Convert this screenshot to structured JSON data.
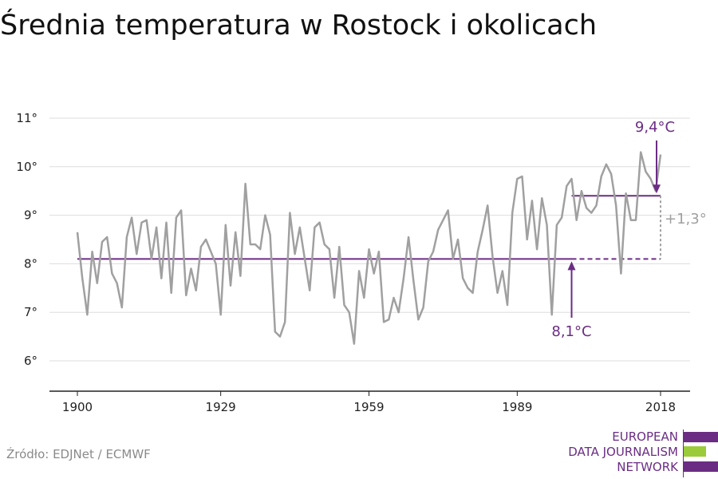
{
  "title": "Średnia temperatura w Rostock i okolicach",
  "source": "Źródło: EDJNet / ECMWF",
  "logo": {
    "lines": [
      "EUROPEAN",
      "DATA JOURNALISM",
      "NETWORK"
    ],
    "colors": {
      "purple": "#6b2d84",
      "green": "#9bcb3b"
    }
  },
  "colors": {
    "line": "#a0a0a0",
    "accent": "#6b2d84",
    "delta": "#a0a0a0",
    "axis": "#222222",
    "grid": "#dddddd"
  },
  "chart_data": {
    "type": "line",
    "title": "Średnia temperatura w Rostock i okolicach",
    "xlabel": "",
    "ylabel": "",
    "xlim": [
      1900,
      2018
    ],
    "ylim": [
      5.4,
      11.3
    ],
    "x_ticks": [
      1900,
      1929,
      1959,
      1989,
      2018
    ],
    "x_tick_labels": [
      "1900",
      "1929",
      "1959",
      "1989",
      "2018"
    ],
    "y_ticks": [
      6,
      7,
      8,
      9,
      10,
      11
    ],
    "y_tick_labels": [
      "6°",
      "7°",
      "8°",
      "9°",
      "10°",
      "11°"
    ],
    "grid": true,
    "series": [
      {
        "x_start": 1900,
        "values": [
          8.65,
          7.7,
          6.95,
          8.25,
          7.6,
          8.45,
          8.55,
          7.8,
          7.6,
          7.1,
          8.55,
          8.95,
          8.2,
          8.85,
          8.9,
          8.1,
          8.75,
          7.7,
          8.85,
          7.4,
          8.95,
          9.1,
          7.35,
          7.9,
          7.45,
          8.35,
          8.5,
          8.25,
          8.0,
          6.95,
          8.8,
          7.55,
          8.65,
          7.75,
          9.65,
          8.4,
          8.4,
          8.3,
          9.0,
          8.6,
          6.6,
          6.5,
          6.8,
          9.05,
          8.2,
          8.75,
          8.1,
          7.45,
          8.75,
          8.85,
          8.4,
          8.3,
          7.3,
          8.35,
          7.15,
          7.0,
          6.35,
          7.85,
          7.3,
          8.3,
          7.8,
          8.25,
          6.8,
          6.85,
          7.3,
          7.0,
          7.7,
          8.55,
          7.65,
          6.85,
          7.1,
          8.05,
          8.25,
          8.7,
          8.9,
          9.1,
          8.1,
          8.5,
          7.7,
          7.5,
          7.4,
          8.25,
          8.7,
          9.2,
          8.15,
          7.4,
          7.85,
          7.15,
          9.05,
          9.75,
          9.8,
          8.5,
          9.3,
          8.3,
          9.35,
          8.8,
          6.95,
          8.8,
          8.95,
          9.6,
          9.75,
          8.9,
          9.5,
          9.15,
          9.05,
          9.2,
          9.8,
          10.05,
          9.85,
          9.2,
          7.8,
          9.45,
          8.9,
          8.9,
          10.3,
          9.9,
          9.75,
          9.5,
          10.25
        ]
      }
    ],
    "reference_lines": [
      {
        "value": 8.1,
        "x_from": 1900,
        "x_to": 2000,
        "extends_dashed_to": 2018,
        "style": "solid"
      },
      {
        "value": 9.4,
        "x_from": 2000,
        "x_to": 2018,
        "style": "solid"
      }
    ],
    "annotations": [
      {
        "text": "8,1°C",
        "x": 2000,
        "y": 8.1
      },
      {
        "text": "9,4°C",
        "x": 2018,
        "y": 9.4
      },
      {
        "text": "+1,3°",
        "x": 2018,
        "y": 8.75
      }
    ]
  }
}
